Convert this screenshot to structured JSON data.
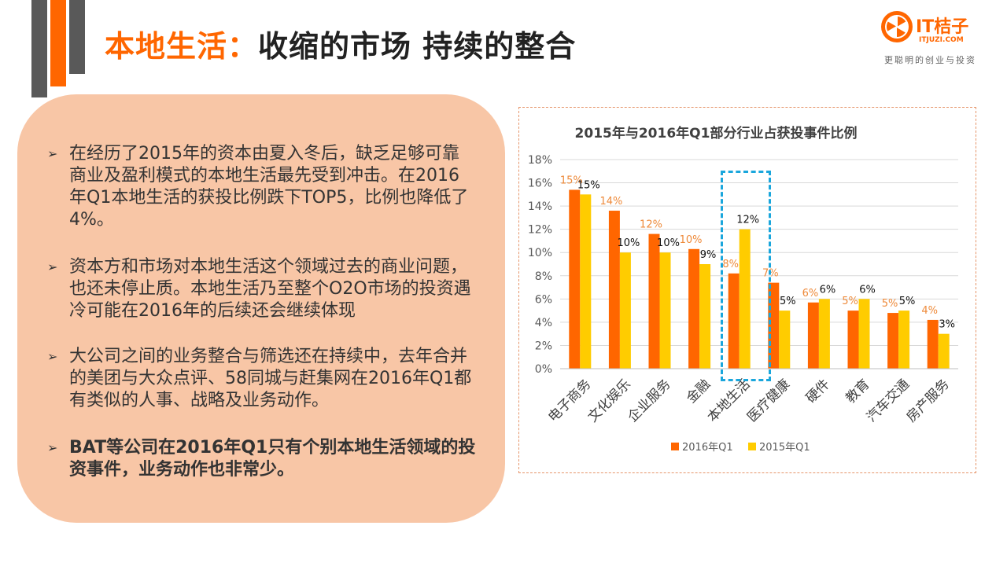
{
  "header": {
    "title_part1": "本地生活：",
    "title_part2": "收缩的市场  持续的整合"
  },
  "logo": {
    "brand": "IT桔子",
    "domain": "ITJUZI.COM",
    "slogan": "更聪明的创业与投资"
  },
  "bullets": [
    {
      "text": "在经历了2015年的资本由夏入冬后，缺乏足够可靠商业及盈利模式的本地生活最先受到冲击。在2016年Q1本地生活的获投比例跌下TOP5，比例也降低了4%。",
      "bold": false
    },
    {
      "text": "资本方和市场对本地生活这个领域过去的商业问题，也还未停止质。本地生活乃至整个O2O市场的投资遇冷可能在2016年的后续还会继续体现",
      "bold": false
    },
    {
      "text": "大公司之间的业务整合与筛选还在持续中，去年合并的美团与大众点评、58同城与赶集网在2016年Q1都有类似的人事、战略及业务动作。",
      "bold": false
    },
    {
      "text": "BAT等公司在2016年Q1只有个别本地生活领域的投资事件，业务动作也非常少。",
      "bold": true
    }
  ],
  "colors": {
    "accent": "#ff6600",
    "series_2016": "#ff6600",
    "series_2015": "#ffcc00",
    "label_2016": "#ee8a3a",
    "highlight": "#1aa6dc",
    "panel": "#f8c6a6"
  },
  "chart_data": {
    "type": "bar",
    "title": "2015年与2016年Q1部分行业占获投事件比例",
    "categories": [
      "电子商务",
      "文化娱乐",
      "企业服务",
      "金融",
      "本地生活",
      "医疗健康",
      "硬件",
      "教育",
      "汽车交通",
      "房产服务"
    ],
    "series": [
      {
        "name": "2016年Q1",
        "values": [
          15.4,
          13.6,
          11.6,
          10.3,
          8.2,
          7.4,
          5.7,
          5.0,
          4.8,
          4.2
        ],
        "labels": [
          "15%",
          "14%",
          "12%",
          "10%",
          "8%",
          "7%",
          "6%",
          "5%",
          "5%",
          "4%"
        ]
      },
      {
        "name": "2015年Q1",
        "values": [
          15.0,
          10.0,
          10.0,
          9.0,
          12.0,
          5.0,
          6.0,
          6.0,
          5.0,
          3.0
        ],
        "labels": [
          "15%",
          "10%",
          "10%",
          "9%",
          "12%",
          "5%",
          "6%",
          "6%",
          "5%",
          "3%"
        ]
      }
    ],
    "ylim": [
      0,
      18
    ],
    "yticks": [
      "0%",
      "2%",
      "4%",
      "6%",
      "8%",
      "10%",
      "12%",
      "14%",
      "16%",
      "18%"
    ],
    "legend_position": "bottom",
    "highlighted_category": "本地生活",
    "grid": true
  }
}
